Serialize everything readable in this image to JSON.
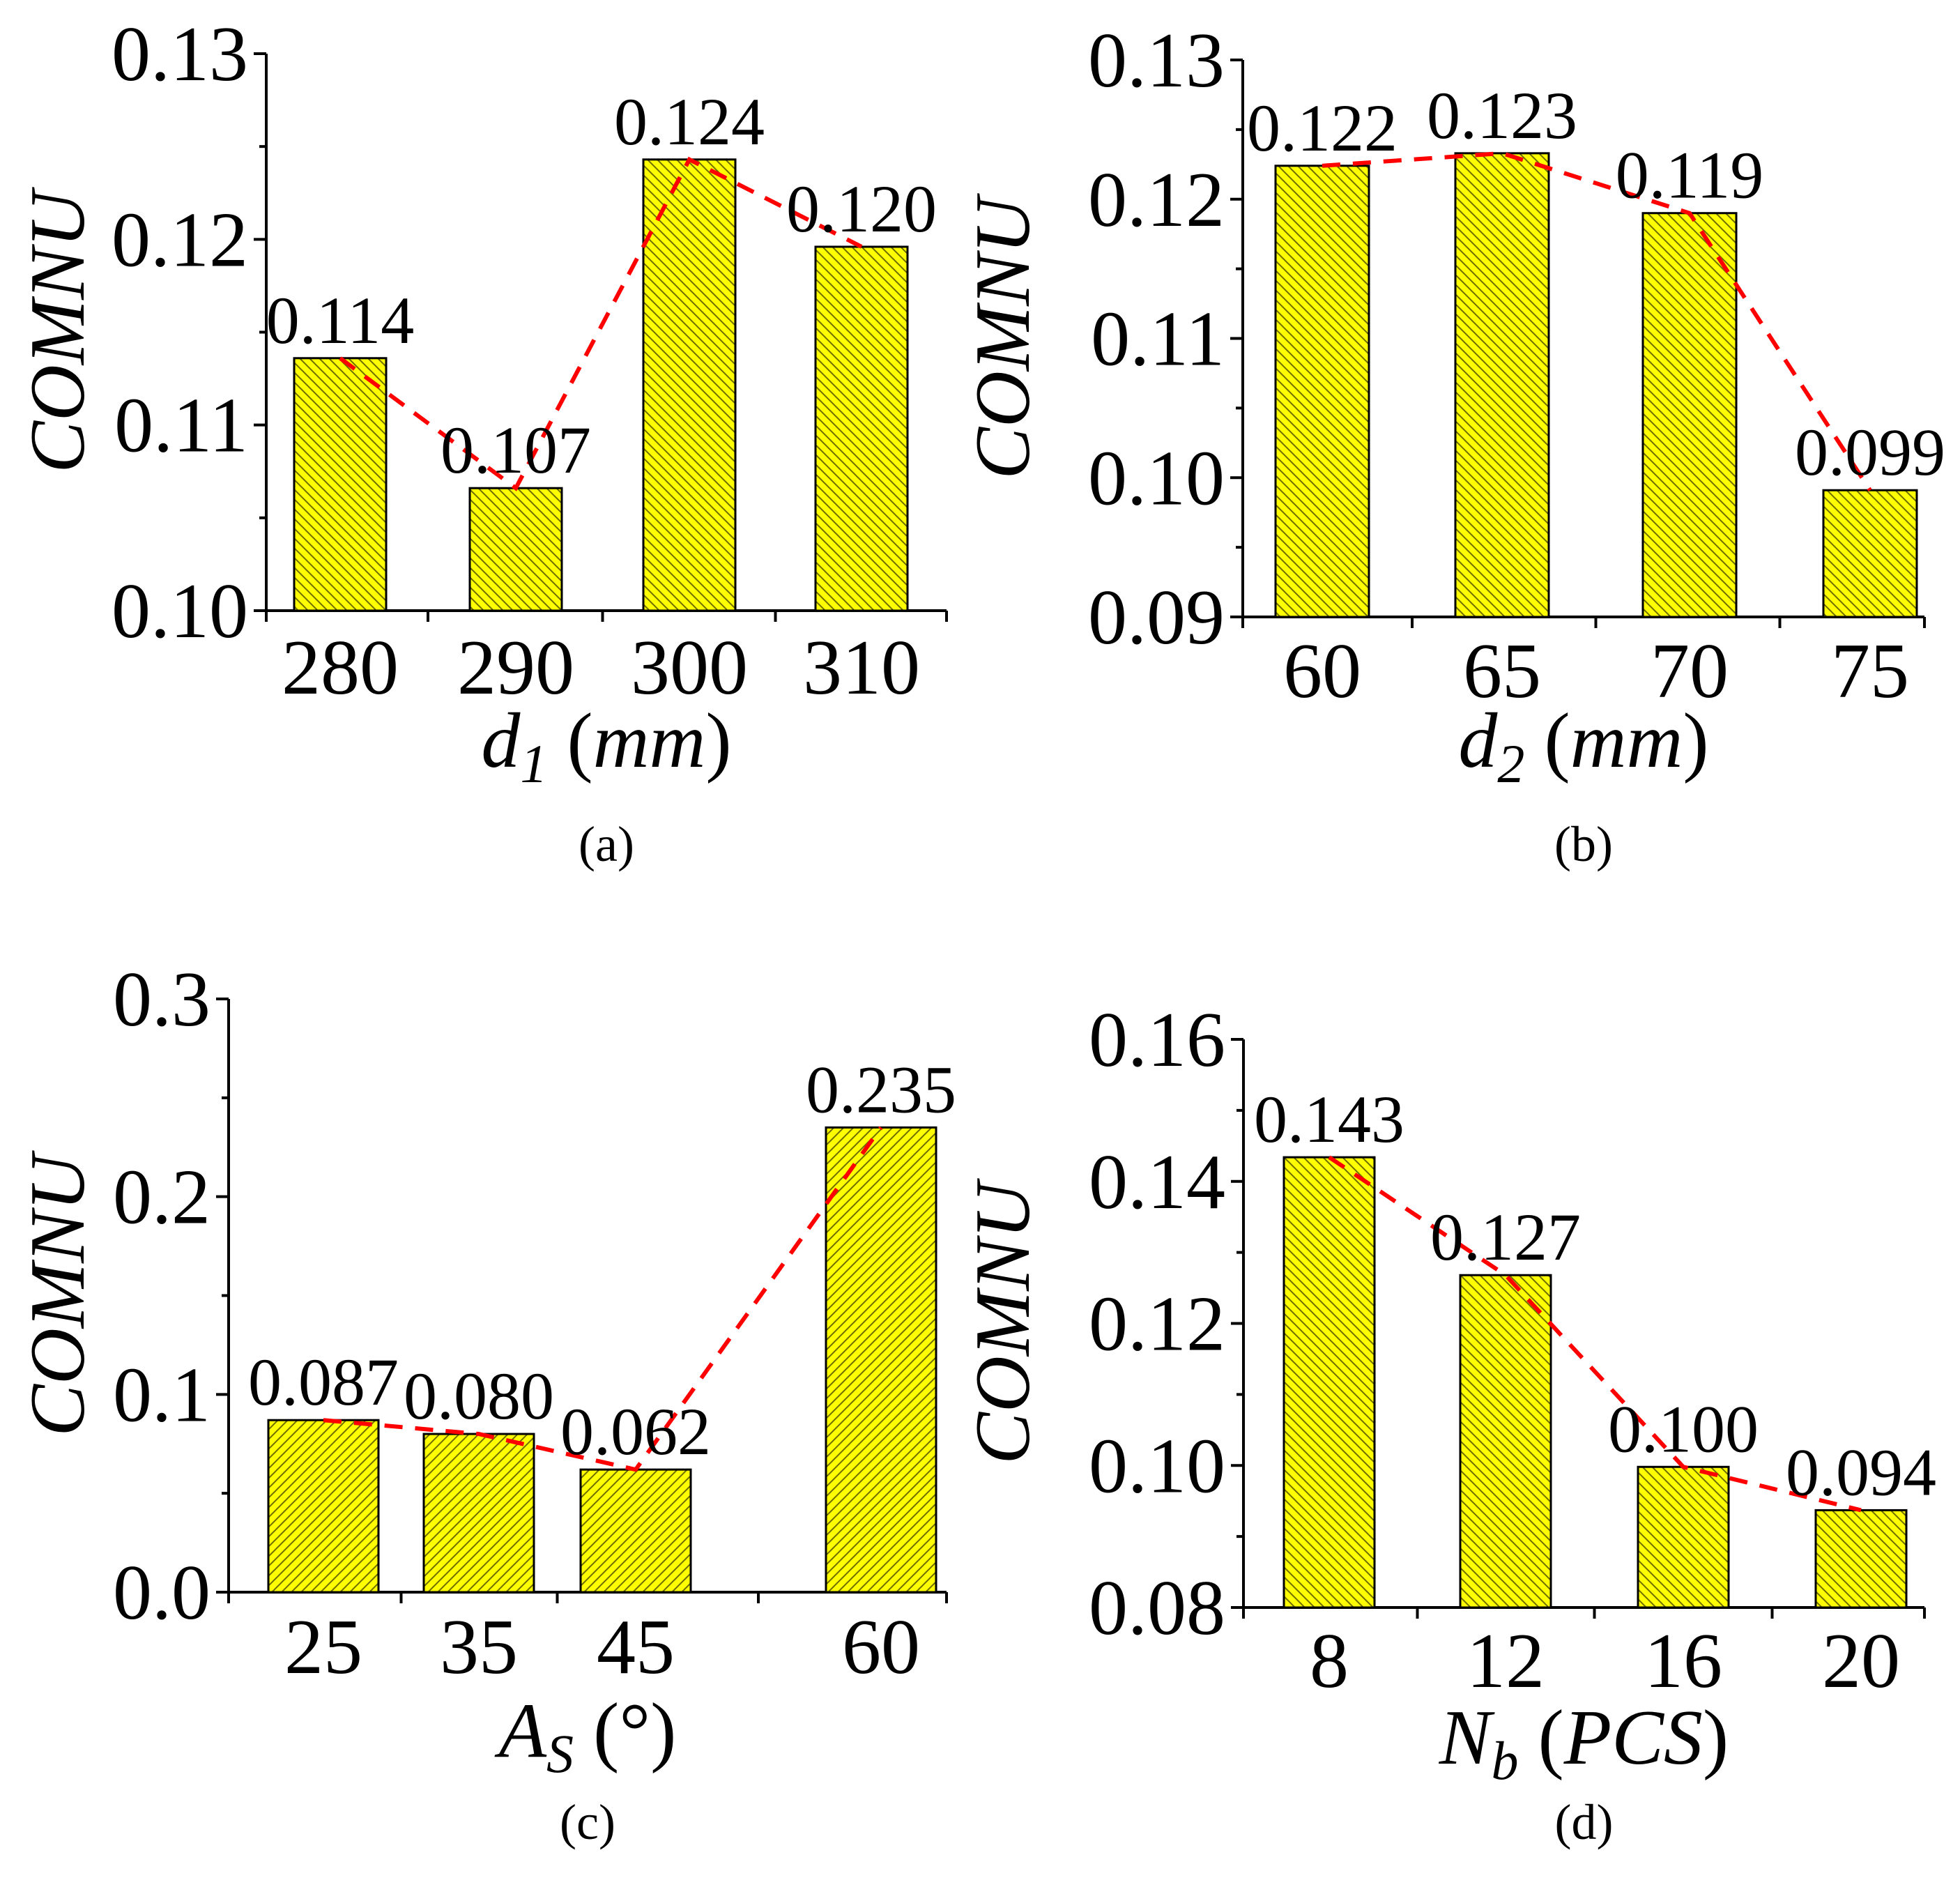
{
  "colors": {
    "bar_fill": "#ffff00",
    "hatch": "#6e6e00",
    "trend_line": "#ff0000",
    "axis": "#000000"
  },
  "chart_data": [
    {
      "id": "a",
      "type": "bar",
      "panel_label": "(a)",
      "ylabel": "COMNU",
      "xlabel_main": "d",
      "xlabel_sub": "1",
      "xlabel_unit": "mm",
      "categories": [
        "280",
        "290",
        "300",
        "310"
      ],
      "values": [
        0.1136,
        0.1066,
        0.1243,
        0.1196
      ],
      "data_labels": [
        "0.114",
        "0.107",
        "0.124",
        "0.120"
      ],
      "ylim": [
        0.1,
        0.13
      ],
      "yticks": [
        0.1,
        0.11,
        0.12,
        0.13
      ],
      "ytick_labels": [
        "0.10",
        "0.11",
        "0.12",
        "0.13"
      ],
      "hatch_direction": "back",
      "trend": "dashed red line through bar tops"
    },
    {
      "id": "b",
      "type": "bar",
      "panel_label": "(b)",
      "ylabel": "COMNU",
      "xlabel_main": "d",
      "xlabel_sub": "2",
      "xlabel_unit": "mm",
      "categories": [
        "60",
        "65",
        "70",
        "75"
      ],
      "values": [
        0.1224,
        0.1233,
        0.119,
        0.0991
      ],
      "data_labels": [
        "0.122",
        "0.123",
        "0.119",
        "0.099"
      ],
      "ylim": [
        0.09,
        0.13
      ],
      "yticks": [
        0.09,
        0.1,
        0.11,
        0.12,
        0.13
      ],
      "ytick_labels": [
        "0.09",
        "0.10",
        "0.11",
        "0.12",
        "0.13"
      ],
      "hatch_direction": "back",
      "trend": "dashed red line through bar tops"
    },
    {
      "id": "c",
      "type": "bar",
      "panel_label": "(c)",
      "ylabel": "COMNU",
      "xlabel_main": "A",
      "xlabel_sub": "S",
      "xlabel_unit": "°",
      "categories": [
        "25",
        "35",
        "45",
        "60"
      ],
      "values": [
        0.087,
        0.08,
        0.062,
        0.235
      ],
      "data_labels": [
        "0.087",
        "0.080",
        "0.062",
        "0.235"
      ],
      "ylim": [
        0.0,
        0.3
      ],
      "yticks": [
        0.0,
        0.1,
        0.2,
        0.3
      ],
      "ytick_labels": [
        "0.0",
        "0.1",
        "0.2",
        "0.3"
      ],
      "hatch_direction": "forward",
      "trend": "dashed red line through bar tops"
    },
    {
      "id": "d",
      "type": "bar",
      "panel_label": "(d)",
      "ylabel": "COMNU",
      "xlabel_main": "N",
      "xlabel_sub": "b",
      "xlabel_unit": "PCS",
      "categories": [
        "8",
        "12",
        "16",
        "20"
      ],
      "values": [
        0.1434,
        0.1268,
        0.0998,
        0.0937
      ],
      "data_labels": [
        "0.143",
        "0.127",
        "0.100",
        "0.094"
      ],
      "ylim": [
        0.08,
        0.16
      ],
      "yticks": [
        0.08,
        0.1,
        0.12,
        0.14,
        0.16
      ],
      "ytick_labels": [
        "0.08",
        "0.10",
        "0.12",
        "0.14",
        "0.16"
      ],
      "hatch_direction": "back",
      "trend": "dashed red line through bar tops"
    }
  ]
}
